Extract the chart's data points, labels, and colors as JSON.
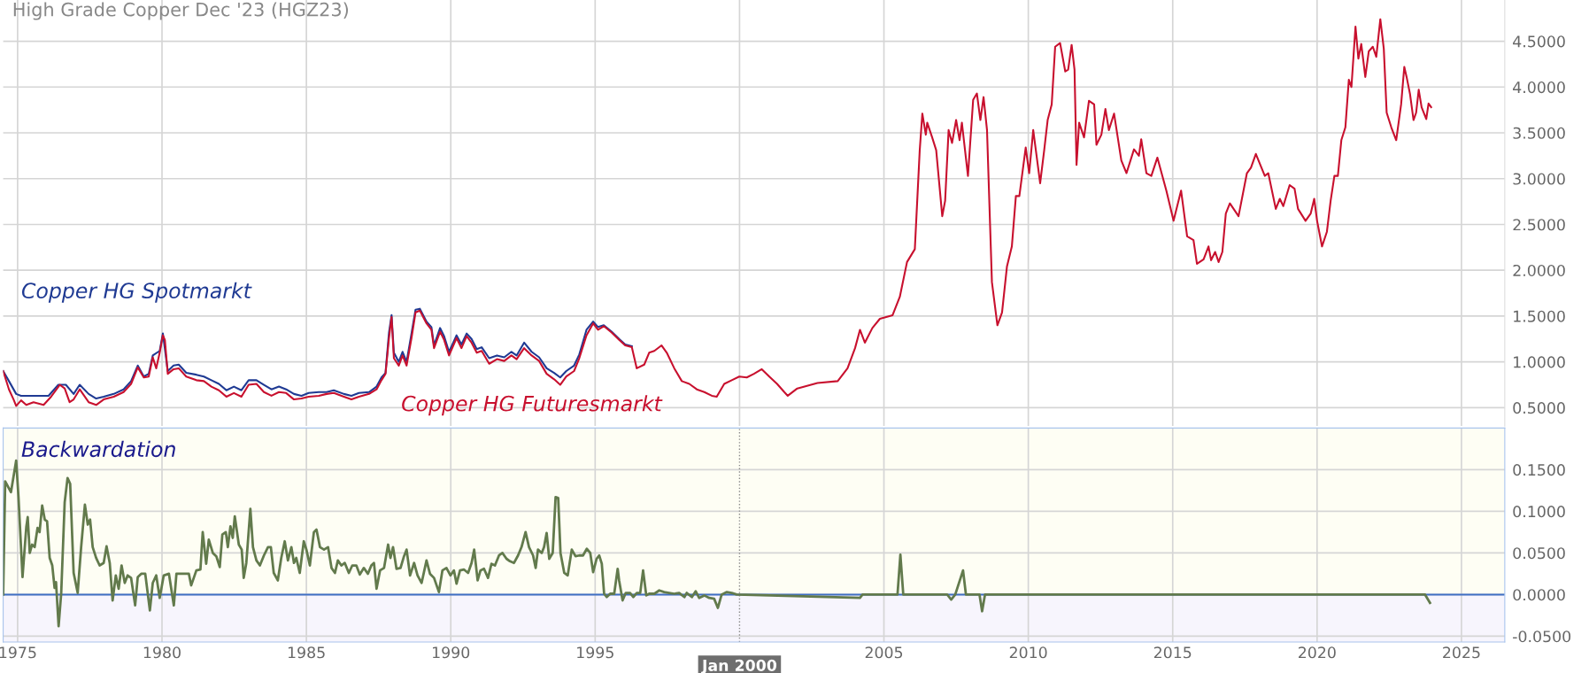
{
  "chart_data": [
    {
      "type": "line",
      "title": "High Grade Copper Dec '23 (HGZ23)",
      "xlim": [
        1974.5,
        2026.5
      ],
      "ylim": [
        0.3,
        4.95
      ],
      "xticks": [
        1975,
        1980,
        1985,
        1990,
        1995,
        2000,
        2005,
        2010,
        2015,
        2020,
        2025
      ],
      "yticks": [
        {
          "value": 0.5,
          "label": "0.5000"
        },
        {
          "value": 1.0,
          "label": "1.0000"
        },
        {
          "value": 1.5,
          "label": "1.5000"
        },
        {
          "value": 2.0,
          "label": "2.0000"
        },
        {
          "value": 2.5,
          "label": "2.5000"
        },
        {
          "value": 3.0,
          "label": "3.0000"
        },
        {
          "value": 3.5,
          "label": "3.5000"
        },
        {
          "value": 4.0,
          "label": "4.0000"
        },
        {
          "value": 4.5,
          "label": "4.5000"
        }
      ],
      "tick_labels": "y",
      "grid": true,
      "legend": false,
      "series": [
        {
          "name": "Copper HG Spotmarkt",
          "color": "#1f3a93",
          "x": [
            1974.5,
            1974.7,
            1974.95,
            1975.12,
            1975.55,
            1976.07,
            1976.41,
            1976.67,
            1976.94,
            1977.15,
            1977.46,
            1977.72,
            1977.98,
            1978.33,
            1978.67,
            1978.93,
            1979.16,
            1979.37,
            1979.54,
            1979.68,
            1979.92,
            1980.03,
            1980.2,
            1980.4,
            1980.58,
            1980.84,
            1981.19,
            1981.45,
            1981.71,
            1981.97,
            1982.23,
            1982.49,
            1982.75,
            1983.0,
            1983.27,
            1983.53,
            1983.79,
            1984.05,
            1984.3,
            1984.57,
            1984.83,
            1985.08,
            1985.43,
            1985.7,
            1985.95,
            1986.3,
            1986.56,
            1986.82,
            1987.17,
            1987.43,
            1987.6,
            1987.74,
            1987.86,
            1987.95,
            1988.03,
            1988.2,
            1988.33,
            1988.47,
            1988.64,
            1988.78,
            1988.93,
            1989.16,
            1989.33,
            1989.42,
            1989.63,
            1989.77,
            1989.94,
            1990.2,
            1990.37,
            1990.55,
            1990.72,
            1990.9,
            1991.07,
            1991.33,
            1991.6,
            1991.85,
            1992.1,
            1992.28,
            1992.54,
            1992.8,
            1993.06,
            1993.32,
            1993.58,
            1993.79,
            1994.0,
            1994.27,
            1994.45,
            1994.7,
            1994.93,
            1995.1,
            1995.3,
            1995.57,
            1995.83,
            1996.04,
            1996.27
          ],
          "values": [
            0.9,
            0.79,
            0.65,
            0.63,
            0.63,
            0.63,
            0.75,
            0.75,
            0.65,
            0.75,
            0.65,
            0.6,
            0.62,
            0.65,
            0.7,
            0.79,
            0.96,
            0.84,
            0.87,
            1.07,
            1.12,
            1.31,
            0.9,
            0.96,
            0.97,
            0.88,
            0.86,
            0.84,
            0.8,
            0.76,
            0.69,
            0.73,
            0.69,
            0.8,
            0.8,
            0.75,
            0.7,
            0.73,
            0.7,
            0.65,
            0.63,
            0.66,
            0.67,
            0.67,
            0.69,
            0.65,
            0.63,
            0.66,
            0.67,
            0.73,
            0.83,
            0.88,
            1.32,
            1.51,
            1.1,
            1.0,
            1.11,
            1.0,
            1.31,
            1.57,
            1.58,
            1.44,
            1.38,
            1.18,
            1.37,
            1.28,
            1.11,
            1.29,
            1.19,
            1.31,
            1.25,
            1.14,
            1.16,
            1.04,
            1.07,
            1.05,
            1.11,
            1.07,
            1.21,
            1.11,
            1.05,
            0.93,
            0.88,
            0.83,
            0.9,
            0.96,
            1.08,
            1.35,
            1.44,
            1.38,
            1.4,
            1.33,
            1.25,
            1.19,
            1.17
          ]
        },
        {
          "name": "Copper HG Futuresmarkt",
          "color": "#c8102e",
          "x": [
            1974.5,
            1974.7,
            1974.86,
            1974.95,
            1975.12,
            1975.3,
            1975.55,
            1975.9,
            1976.16,
            1976.46,
            1976.63,
            1976.8,
            1976.94,
            1977.15,
            1977.46,
            1977.72,
            1977.98,
            1978.33,
            1978.67,
            1978.93,
            1979.16,
            1979.37,
            1979.54,
            1979.68,
            1979.8,
            1979.92,
            1980.03,
            1980.1,
            1980.2,
            1980.4,
            1980.58,
            1980.84,
            1981.19,
            1981.45,
            1981.71,
            1981.97,
            1982.23,
            1982.49,
            1982.75,
            1983.0,
            1983.27,
            1983.53,
            1983.79,
            1984.05,
            1984.3,
            1984.57,
            1984.83,
            1985.08,
            1985.43,
            1985.7,
            1985.95,
            1986.3,
            1986.56,
            1986.82,
            1987.17,
            1987.43,
            1987.6,
            1987.74,
            1987.86,
            1987.95,
            1988.03,
            1988.2,
            1988.33,
            1988.47,
            1988.64,
            1988.78,
            1988.93,
            1989.16,
            1989.33,
            1989.42,
            1989.63,
            1989.77,
            1989.94,
            1990.2,
            1990.37,
            1990.55,
            1990.72,
            1990.9,
            1991.07,
            1991.33,
            1991.6,
            1991.85,
            1992.1,
            1992.28,
            1992.54,
            1992.8,
            1993.06,
            1993.32,
            1993.58,
            1993.79,
            1994.0,
            1994.27,
            1994.45,
            1994.7,
            1994.93,
            1995.1,
            1995.3,
            1995.57,
            1995.83,
            1996.04,
            1996.27,
            1996.44,
            1996.7,
            1996.87,
            1997.05,
            1997.3,
            1997.48,
            1997.74,
            1998.0,
            1998.26,
            1998.52,
            1998.78,
            1999.04,
            1999.21,
            1999.47,
            1999.73,
            1999.99,
            2000.25,
            2000.5,
            2000.77,
            2001.03,
            2001.3,
            2001.55,
            2001.67,
            2002.0,
            2002.7,
            2003.4,
            2003.74,
            2004.0,
            2004.17,
            2004.34,
            2004.6,
            2004.86,
            2005.3,
            2005.55,
            2005.8,
            2006.07,
            2006.24,
            2006.33,
            2006.45,
            2006.5,
            2006.67,
            2006.81,
            2007.02,
            2007.12,
            2007.24,
            2007.36,
            2007.5,
            2007.62,
            2007.7,
            2007.91,
            2008.09,
            2008.22,
            2008.34,
            2008.45,
            2008.57,
            2008.74,
            2008.93,
            2009.09,
            2009.26,
            2009.43,
            2009.57,
            2009.69,
            2009.91,
            2010.03,
            2010.17,
            2010.41,
            2010.55,
            2010.67,
            2010.81,
            2010.93,
            2011.1,
            2011.28,
            2011.38,
            2011.5,
            2011.6,
            2011.67,
            2011.76,
            2011.93,
            2012.1,
            2012.28,
            2012.36,
            2012.53,
            2012.67,
            2012.79,
            2012.97,
            2013.22,
            2013.4,
            2013.66,
            2013.83,
            2013.91,
            2014.09,
            2014.26,
            2014.47,
            2014.78,
            2015.03,
            2015.29,
            2015.5,
            2015.72,
            2015.84,
            2016.07,
            2016.24,
            2016.33,
            2016.47,
            2016.59,
            2016.72,
            2016.84,
            2016.98,
            2017.28,
            2017.57,
            2017.71,
            2017.88,
            2018.19,
            2018.31,
            2018.57,
            2018.71,
            2018.83,
            2019.05,
            2019.22,
            2019.34,
            2019.6,
            2019.78,
            2019.9,
            2020.0,
            2020.17,
            2020.34,
            2020.47,
            2020.6,
            2020.72,
            2020.84,
            2020.98,
            2021.1,
            2021.19,
            2021.33,
            2021.43,
            2021.53,
            2021.67,
            2021.79,
            2021.93,
            2022.05,
            2022.19,
            2022.31,
            2022.41,
            2022.57,
            2022.74,
            2022.91,
            2023.02,
            2023.1,
            2023.22,
            2023.34,
            2023.43,
            2023.52,
            2023.62,
            2023.78,
            2023.86,
            2023.95
          ],
          "values": [
            0.9,
            0.7,
            0.59,
            0.52,
            0.58,
            0.53,
            0.56,
            0.53,
            0.62,
            0.75,
            0.71,
            0.56,
            0.59,
            0.7,
            0.56,
            0.53,
            0.59,
            0.62,
            0.67,
            0.76,
            0.94,
            0.83,
            0.84,
            1.05,
            0.93,
            1.1,
            1.29,
            1.24,
            0.87,
            0.92,
            0.93,
            0.84,
            0.8,
            0.79,
            0.73,
            0.69,
            0.62,
            0.66,
            0.62,
            0.75,
            0.76,
            0.67,
            0.63,
            0.67,
            0.66,
            0.59,
            0.6,
            0.62,
            0.63,
            0.65,
            0.66,
            0.62,
            0.59,
            0.62,
            0.65,
            0.7,
            0.8,
            0.87,
            1.26,
            1.49,
            1.04,
            0.96,
            1.07,
            0.96,
            1.26,
            1.54,
            1.56,
            1.42,
            1.35,
            1.15,
            1.33,
            1.24,
            1.07,
            1.26,
            1.15,
            1.28,
            1.21,
            1.1,
            1.12,
            0.98,
            1.03,
            1.01,
            1.07,
            1.03,
            1.15,
            1.07,
            1.01,
            0.87,
            0.81,
            0.75,
            0.84,
            0.9,
            1.04,
            1.29,
            1.42,
            1.35,
            1.39,
            1.32,
            1.24,
            1.18,
            1.16,
            0.93,
            0.97,
            1.1,
            1.12,
            1.18,
            1.1,
            0.93,
            0.79,
            0.76,
            0.7,
            0.67,
            0.63,
            0.62,
            0.76,
            0.8,
            0.84,
            0.83,
            0.87,
            0.92,
            0.84,
            0.76,
            0.67,
            0.63,
            0.71,
            0.77,
            0.79,
            0.93,
            1.15,
            1.35,
            1.21,
            1.37,
            1.47,
            1.51,
            1.71,
            2.09,
            2.23,
            3.31,
            3.71,
            3.48,
            3.61,
            3.45,
            3.31,
            2.59,
            2.76,
            3.53,
            3.39,
            3.64,
            3.42,
            3.61,
            3.03,
            3.86,
            3.93,
            3.64,
            3.89,
            3.53,
            1.87,
            1.4,
            1.54,
            2.04,
            2.26,
            2.81,
            2.81,
            3.34,
            3.06,
            3.53,
            2.95,
            3.31,
            3.64,
            3.81,
            4.44,
            4.48,
            4.17,
            4.19,
            4.46,
            4.19,
            3.15,
            3.61,
            3.45,
            3.85,
            3.81,
            3.37,
            3.48,
            3.76,
            3.53,
            3.71,
            3.2,
            3.06,
            3.32,
            3.25,
            3.43,
            3.06,
            3.03,
            3.23,
            2.87,
            2.54,
            2.87,
            2.37,
            2.33,
            2.07,
            2.12,
            2.26,
            2.11,
            2.2,
            2.09,
            2.2,
            2.62,
            2.73,
            2.59,
            3.06,
            3.12,
            3.27,
            3.03,
            3.06,
            2.67,
            2.78,
            2.7,
            2.93,
            2.89,
            2.67,
            2.54,
            2.62,
            2.78,
            2.54,
            2.26,
            2.42,
            2.76,
            3.03,
            3.03,
            3.42,
            3.56,
            4.08,
            4.0,
            4.66,
            4.31,
            4.47,
            4.11,
            4.39,
            4.44,
            4.33,
            4.74,
            4.42,
            3.72,
            3.56,
            3.42,
            3.81,
            4.22,
            4.11,
            3.92,
            3.64,
            3.72,
            3.97,
            3.78,
            3.65,
            3.82,
            3.78
          ]
        }
      ]
    },
    {
      "type": "line",
      "title": "Backwardation",
      "xlim": [
        1974.5,
        2026.5
      ],
      "ylim": [
        -0.057,
        0.2
      ],
      "xticks": [
        1975,
        1980,
        1985,
        1990,
        1995,
        2005,
        2010,
        2015,
        2020,
        2025
      ],
      "yticks": [
        {
          "value": -0.05,
          "label": "-0.0500"
        },
        {
          "value": 0.0,
          "label": "0.0000"
        },
        {
          "value": 0.05,
          "label": "0.0500"
        },
        {
          "value": 0.1,
          "label": "0.1000"
        },
        {
          "value": 0.15,
          "label": "0.1500"
        }
      ],
      "grid": true,
      "legend": false,
      "bands": [
        {
          "axis": "y",
          "from": 0,
          "to": 0.2,
          "color": "#fefef4"
        },
        {
          "axis": "y",
          "from": -0.057,
          "to": 0,
          "color": "#f7f5fd"
        }
      ],
      "ref_lines": [
        {
          "axis": "y",
          "value": 0,
          "color": "#3f6fc4",
          "line_style": "solid"
        },
        {
          "axis": "x",
          "value": 2000,
          "label": "Jan 2000",
          "color": "#8a8a8a",
          "line_style": "dotted"
        }
      ],
      "series": [
        {
          "color": "#627a4c",
          "x": [
            1974.5,
            1974.57,
            1974.77,
            1974.95,
            1975.03,
            1975.17,
            1975.3,
            1975.35,
            1975.42,
            1975.5,
            1975.59,
            1975.69,
            1975.76,
            1975.85,
            1975.94,
            1976.02,
            1976.11,
            1976.2,
            1976.28,
            1976.33,
            1976.42,
            1976.51,
            1976.63,
            1976.73,
            1976.82,
            1976.94,
            1977.08,
            1977.2,
            1977.33,
            1977.43,
            1977.51,
            1977.6,
            1977.72,
            1977.84,
            1977.98,
            1978.08,
            1978.19,
            1978.29,
            1978.4,
            1978.5,
            1978.6,
            1978.71,
            1978.81,
            1978.93,
            1979.07,
            1979.16,
            1979.28,
            1979.42,
            1979.58,
            1979.68,
            1979.8,
            1979.92,
            1980.06,
            1980.24,
            1980.41,
            1980.5,
            1980.93,
            1981.01,
            1981.19,
            1981.33,
            1981.41,
            1981.53,
            1981.62,
            1981.76,
            1981.88,
            1982.0,
            1982.09,
            1982.21,
            1982.28,
            1982.37,
            1982.45,
            1982.52,
            1982.66,
            1982.76,
            1982.83,
            1982.92,
            1983.06,
            1983.15,
            1983.27,
            1983.39,
            1983.53,
            1983.67,
            1983.77,
            1983.87,
            1984.01,
            1984.13,
            1984.25,
            1984.36,
            1984.48,
            1984.57,
            1984.65,
            1984.77,
            1984.91,
            1985.0,
            1985.12,
            1985.26,
            1985.35,
            1985.47,
            1985.61,
            1985.75,
            1985.87,
            1985.99,
            1986.09,
            1986.21,
            1986.33,
            1986.47,
            1986.59,
            1986.73,
            1986.85,
            1986.99,
            1987.13,
            1987.25,
            1987.34,
            1987.43,
            1987.55,
            1987.69,
            1987.83,
            1987.91,
            1988.0,
            1988.12,
            1988.26,
            1988.38,
            1988.47,
            1988.59,
            1988.73,
            1988.85,
            1988.99,
            1989.16,
            1989.28,
            1989.42,
            1989.59,
            1989.71,
            1989.85,
            1989.99,
            1990.11,
            1990.2,
            1990.32,
            1990.46,
            1990.6,
            1990.72,
            1990.81,
            1990.93,
            1991.03,
            1991.15,
            1991.29,
            1991.41,
            1991.53,
            1991.67,
            1991.79,
            1991.93,
            1992.05,
            1992.19,
            1992.33,
            1992.45,
            1992.59,
            1992.71,
            1992.85,
            1992.94,
            1993.02,
            1993.15,
            1993.23,
            1993.32,
            1993.41,
            1993.53,
            1993.63,
            1993.72,
            1993.8,
            1993.93,
            1994.05,
            1994.19,
            1994.32,
            1994.45,
            1994.58,
            1994.71,
            1994.83,
            1994.93,
            1995.05,
            1995.14,
            1995.23,
            1995.31,
            1995.4,
            1995.52,
            1995.66,
            1995.78,
            1995.83,
            1995.95,
            1996.06,
            1996.21,
            1996.32,
            1996.44,
            1996.56,
            1996.66,
            1996.77,
            1996.87,
            1997.05,
            1997.22,
            1997.39,
            1997.56,
            1997.74,
            1997.91,
            1998.09,
            1998.17,
            1998.35,
            1998.48,
            1998.6,
            1998.78,
            1998.95,
            1999.12,
            1999.25,
            1999.38,
            1999.56,
            1999.73,
            1999.9,
            2004.17,
            2004.26,
            2005.47,
            2005.57,
            2005.67,
            2007.19,
            2007.33,
            2007.47,
            2007.74,
            2007.84,
            2008.31,
            2008.4,
            2008.5,
            2023.74,
            2023.91
          ],
          "values": [
            0,
            0.136,
            0.123,
            0.161,
            0.117,
            0.021,
            0.081,
            0.093,
            0.05,
            0.06,
            0.057,
            0.08,
            0.075,
            0.107,
            0.09,
            0.088,
            0.044,
            0.035,
            0.008,
            0.015,
            -0.038,
            0.002,
            0.111,
            0.14,
            0.133,
            0.026,
            0.002,
            0.057,
            0.108,
            0.084,
            0.09,
            0.057,
            0.044,
            0.035,
            0.038,
            0.058,
            0.038,
            -0.007,
            0.023,
            0.007,
            0.035,
            0.014,
            0.023,
            0.02,
            -0.013,
            0.021,
            0.025,
            0.025,
            -0.019,
            0.014,
            0.023,
            -0.004,
            0.023,
            0.025,
            -0.013,
            0.025,
            0.025,
            0.011,
            0.029,
            0.03,
            0.075,
            0.037,
            0.066,
            0.05,
            0.046,
            0.033,
            0.072,
            0.075,
            0.057,
            0.082,
            0.068,
            0.094,
            0.06,
            0.054,
            0.02,
            0.038,
            0.103,
            0.057,
            0.041,
            0.035,
            0.047,
            0.057,
            0.057,
            0.026,
            0.017,
            0.044,
            0.064,
            0.041,
            0.057,
            0.038,
            0.044,
            0.026,
            0.064,
            0.054,
            0.035,
            0.075,
            0.078,
            0.057,
            0.054,
            0.057,
            0.032,
            0.026,
            0.041,
            0.035,
            0.038,
            0.026,
            0.035,
            0.035,
            0.024,
            0.032,
            0.025,
            0.035,
            0.038,
            0.007,
            0.029,
            0.032,
            0.06,
            0.044,
            0.057,
            0.031,
            0.032,
            0.046,
            0.054,
            0.023,
            0.038,
            0.023,
            0.014,
            0.041,
            0.025,
            0.02,
            0.003,
            0.029,
            0.032,
            0.023,
            0.029,
            0.013,
            0.029,
            0.03,
            0.026,
            0.038,
            0.054,
            0.017,
            0.029,
            0.031,
            0.02,
            0.037,
            0.035,
            0.047,
            0.05,
            0.043,
            0.04,
            0.038,
            0.047,
            0.057,
            0.075,
            0.057,
            0.047,
            0.032,
            0.054,
            0.05,
            0.057,
            0.074,
            0.043,
            0.05,
            0.117,
            0.116,
            0.05,
            0.026,
            0.023,
            0.054,
            0.046,
            0.047,
            0.047,
            0.055,
            0.05,
            0.027,
            0.043,
            0.047,
            0.037,
            0.001,
            -0.003,
            0.001,
            0.001,
            0.031,
            0.017,
            -0.007,
            0.002,
            0.002,
            -0.003,
            0.002,
            0.002,
            0.029,
            -0.001,
            0.001,
            0.001,
            0.005,
            0.003,
            0.002,
            0.001,
            0.002,
            -0.003,
            0.002,
            -0.003,
            0.004,
            -0.004,
            -0.001,
            -0.004,
            -0.005,
            -0.016,
            0,
            0.003,
            0.002,
            0,
            -0.004,
            0,
            0,
            0.048,
            0,
            0,
            -0.006,
            0,
            0.029,
            0,
            0,
            -0.02,
            0,
            0,
            -0.01
          ]
        }
      ]
    }
  ]
}
